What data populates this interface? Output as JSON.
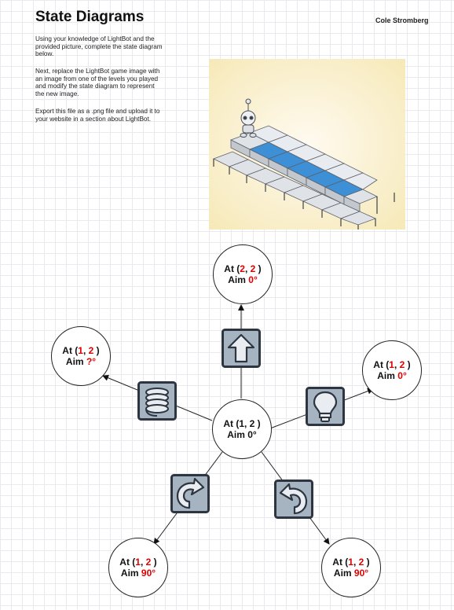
{
  "header": {
    "title": "State Diagrams",
    "author": "Cole Stromberg"
  },
  "instructions": [
    "Using your knowledge of LightBot and the provided picture, complete the state diagram below.",
    "Next, replace the LightBot game image with an image from one of the levels you played and modify the state diagram to represent the new image.",
    "Export this file as a .png file and upload it to your website in a section about LightBot."
  ],
  "diagram": {
    "center": {
      "line1": "At (1, 2 )",
      "line2": "Aim 0°"
    },
    "top": {
      "at_prefix": "At (",
      "x": "2",
      "sep": ", ",
      "y": "2",
      "at_suffix": " )",
      "aim_prefix": "Aim ",
      "aim": "0°"
    },
    "left": {
      "at_prefix": "At (",
      "x": "1",
      "sep": ", ",
      "y": "2",
      "at_suffix": " )",
      "aim_prefix": "Aim ",
      "aim": "?°"
    },
    "right": {
      "at_prefix": "At (",
      "x": "1",
      "sep": ", ",
      "y": "2",
      "at_suffix": " )",
      "aim_prefix": "Aim ",
      "aim": "0°"
    },
    "bottom_left": {
      "at_prefix": "At (",
      "x": "1",
      "sep": ", ",
      "y": "2",
      "at_suffix": " )",
      "aim_prefix": "Aim ",
      "aim": "90°"
    },
    "bottom_right": {
      "at_prefix": "At (",
      "x": "1",
      "sep": ", ",
      "y": "2",
      "at_suffix": " )",
      "aim_prefix": "Aim ",
      "aim": "90°"
    },
    "commands": {
      "forward": "up-arrow-icon",
      "jump": "spring-icon",
      "light": "lightbulb-icon",
      "turn_right": "turn-right-icon",
      "turn_left": "turn-left-icon"
    },
    "colors": {
      "value_red": "#e00000",
      "icon_fill": "#a6b3c0",
      "icon_border": "#2d3540",
      "tile_blue": "#3d8fd6",
      "photo_bg": "#fbf3d2"
    }
  }
}
